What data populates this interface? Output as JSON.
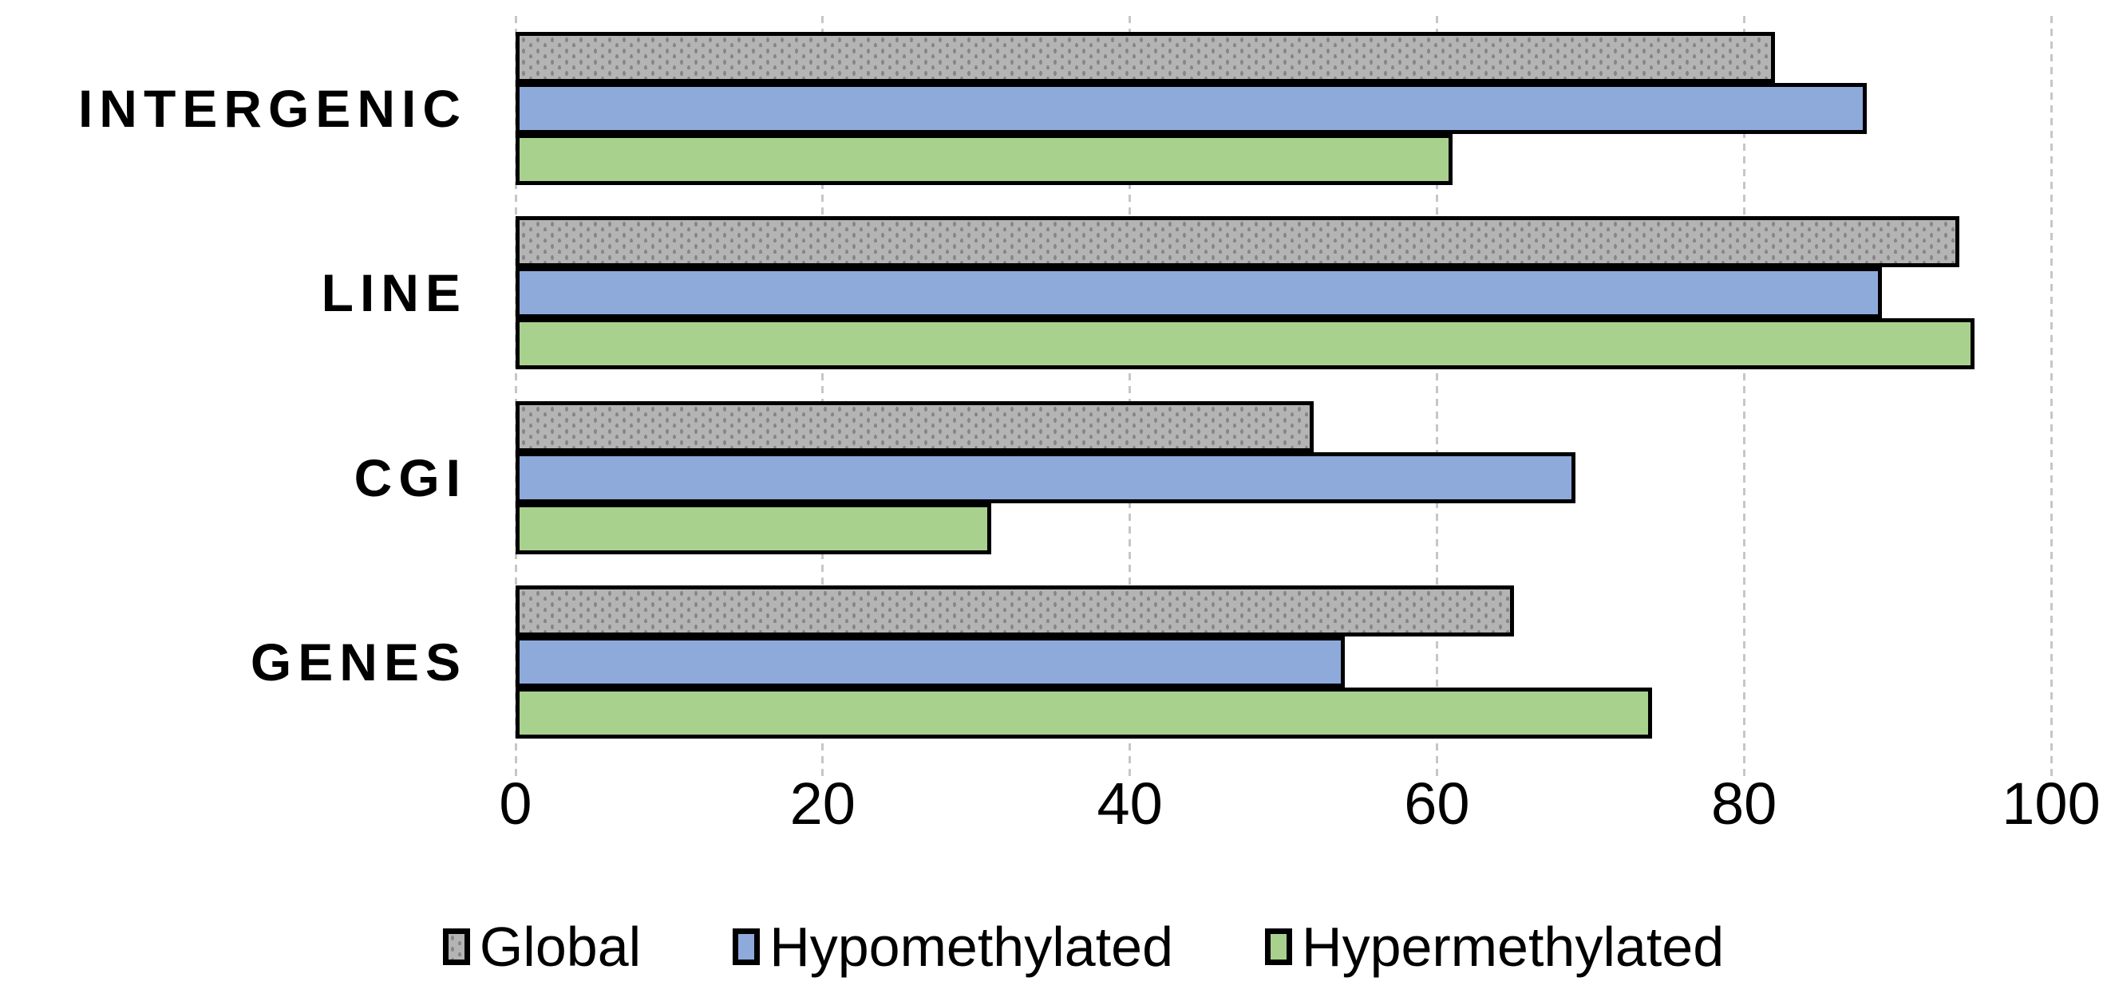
{
  "chart_data": {
    "type": "bar",
    "orientation": "horizontal",
    "title": "",
    "xlabel": "",
    "ylabel": "",
    "categories": [
      "INTERGENIC",
      "LINE",
      "CGI",
      "GENES"
    ],
    "series": [
      {
        "name": "Global",
        "color": "#b4b4b4",
        "pattern": "dots",
        "values": [
          82,
          94,
          52,
          65
        ]
      },
      {
        "name": "Hypomethylated",
        "color": "#8eaadb",
        "pattern": "solid",
        "values": [
          88,
          89,
          69,
          54
        ]
      },
      {
        "name": "Hypermethylated",
        "color": "#a9d18e",
        "pattern": "solid",
        "values": [
          61,
          95,
          31,
          74
        ]
      }
    ],
    "x_axis": {
      "min": 0,
      "max": 100,
      "ticks": [
        0,
        20,
        40,
        60,
        80,
        100
      ],
      "gridlines": true,
      "gridline_style": "dashed"
    },
    "bar_border_color": "#000000",
    "legend": {
      "position": "bottom",
      "entries": [
        "Global",
        "Hypomethylated",
        "Hypermethylated"
      ]
    }
  }
}
